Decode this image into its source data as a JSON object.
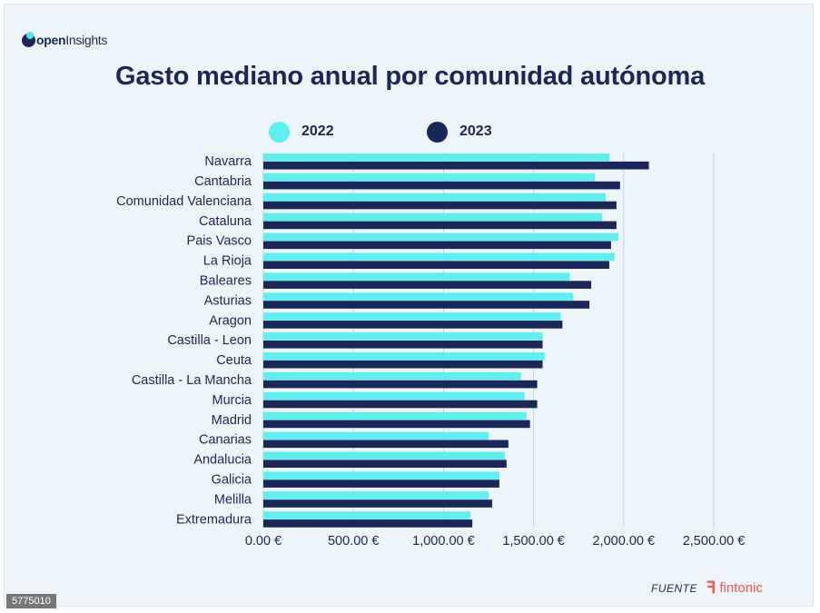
{
  "logo": {
    "text_bold": "open",
    "text_light": "Insights"
  },
  "title": "Gasto mediano anual por comunidad autónoma",
  "legend": [
    {
      "label": "2022",
      "color": "#5ef0ee"
    },
    {
      "label": "2023",
      "color": "#1b2759"
    }
  ],
  "chart_data": {
    "type": "bar",
    "orientation": "horizontal",
    "title": "Gasto mediano anual por comunidad autónoma",
    "categories": [
      "Navarra",
      "Cantabria",
      "Comunidad Valenciana",
      "Cataluna",
      "Pais Vasco",
      "La Rioja",
      "Baleares",
      "Asturias",
      "Aragon",
      "Castilla - Leon",
      "Ceuta",
      "Castilla - La Mancha",
      "Murcia",
      "Madrid",
      "Canarias",
      "Andalucia",
      "Galicia",
      "Melilla",
      "Extremadura"
    ],
    "series": [
      {
        "name": "2022",
        "color": "#5ef0ee",
        "values": [
          1920,
          1840,
          1900,
          1880,
          1970,
          1950,
          1700,
          1720,
          1650,
          1550,
          1560,
          1430,
          1450,
          1460,
          1250,
          1340,
          1310,
          1250,
          1150
        ]
      },
      {
        "name": "2023",
        "color": "#1b2759",
        "values": [
          2140,
          1980,
          1960,
          1960,
          1930,
          1920,
          1820,
          1810,
          1660,
          1550,
          1550,
          1520,
          1520,
          1480,
          1360,
          1350,
          1310,
          1270,
          1160
        ]
      }
    ],
    "xlim": [
      0,
      2500
    ],
    "ticks": [
      0,
      500,
      1000,
      1500,
      2000,
      2500
    ],
    "tick_labels": [
      "0.00 €",
      "500.00 €",
      "1,000.00 €",
      "1,500.00 €",
      "2,000.00 €",
      "2,500.00 €"
    ],
    "grid": true,
    "gridline_color": "#c9d3de",
    "legend_position": "top"
  },
  "source": {
    "label": "FUENTE",
    "brand": "fintonic",
    "icon": "fintonic-logo-icon"
  },
  "image_id": "5775010"
}
